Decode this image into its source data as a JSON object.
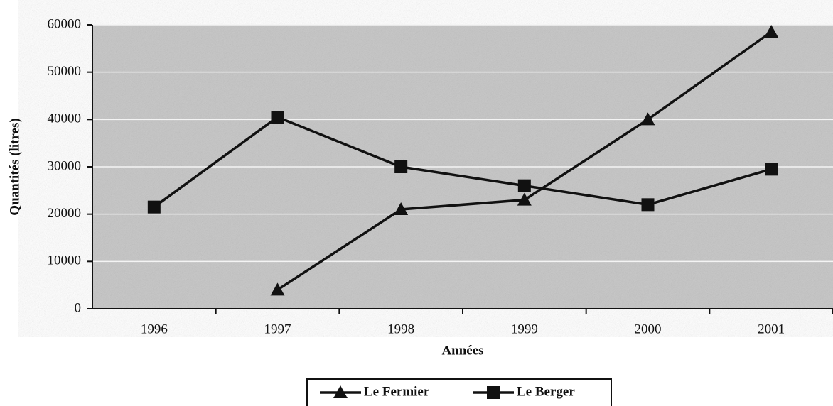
{
  "chart_data": {
    "type": "line",
    "y_label": "Quantités (litres)",
    "x_label": "Années",
    "categories": [
      "1996",
      "1997",
      "1998",
      "1999",
      "2000",
      "2001"
    ],
    "series": [
      {
        "name": "Le Fermier",
        "color": "#111111",
        "marker": "triangle",
        "values": [
          null,
          4000,
          21000,
          23000,
          40000,
          58500
        ]
      },
      {
        "name": "Le Berger",
        "color": "#111111",
        "marker": "square",
        "values": [
          21500,
          40500,
          30000,
          26000,
          22000,
          29500
        ]
      }
    ],
    "ylim": [
      0,
      60000
    ],
    "yticks": [
      0,
      10000,
      20000,
      30000,
      40000,
      50000,
      60000
    ],
    "grid": true,
    "legend": "bottom"
  }
}
